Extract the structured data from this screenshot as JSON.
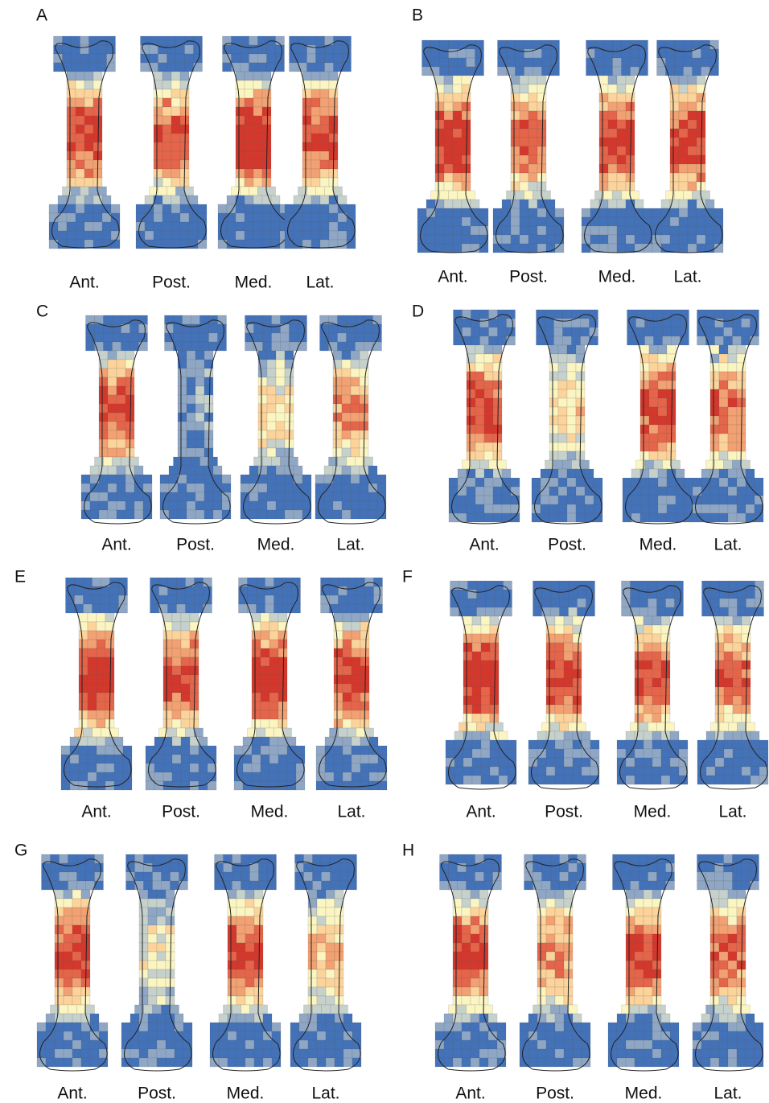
{
  "panels": [
    {
      "label": "A",
      "views": [
        "Ant.",
        "Post.",
        "Med.",
        "Lat."
      ]
    },
    {
      "label": "B",
      "views": [
        "Ant.",
        "Post.",
        "Med.",
        "Lat."
      ]
    },
    {
      "label": "C",
      "views": [
        "Ant.",
        "Post.",
        "Med.",
        "Lat."
      ]
    },
    {
      "label": "D",
      "views": [
        "Ant.",
        "Post.",
        "Med.",
        "Lat."
      ]
    },
    {
      "label": "E",
      "views": [
        "Ant.",
        "Post.",
        "Med.",
        "Lat."
      ]
    },
    {
      "label": "F",
      "views": [
        "Ant.",
        "Post.",
        "Med.",
        "Lat."
      ]
    },
    {
      "label": "G",
      "views": [
        "Ant.",
        "Post.",
        "Med.",
        "Lat."
      ]
    },
    {
      "label": "H",
      "views": [
        "Ant.",
        "Post.",
        "Med.",
        "Lat."
      ]
    }
  ]
}
